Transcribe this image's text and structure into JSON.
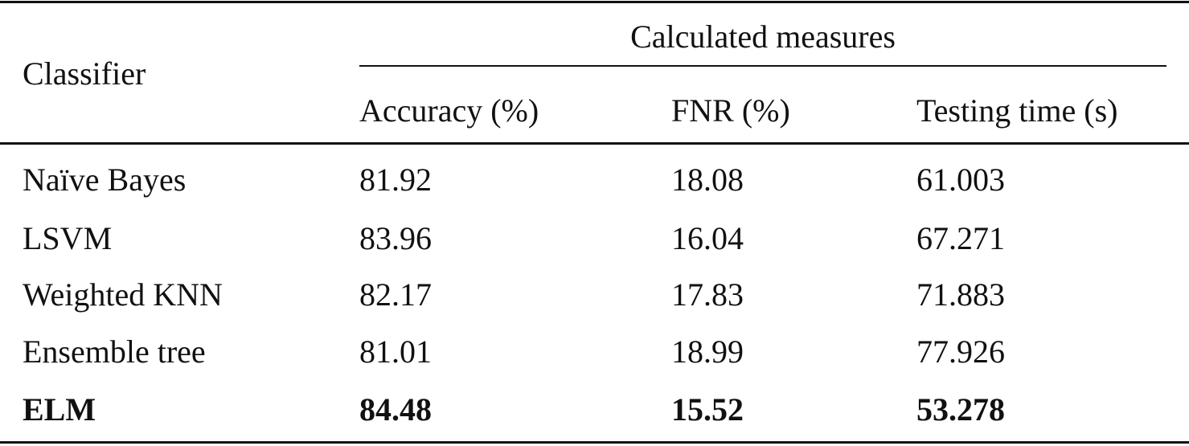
{
  "table": {
    "header": {
      "stub": "Classifier",
      "group": "Calculated measures",
      "columns": [
        "Accuracy (%)",
        "FNR (%)",
        "Testing time (s)"
      ]
    },
    "rows": [
      [
        "Naïve Bayes",
        "81.92",
        "18.08",
        "61.003"
      ],
      [
        "LSVM",
        "83.96",
        "16.04",
        "67.271"
      ],
      [
        "Weighted KNN",
        "82.17",
        "17.83",
        "71.883"
      ],
      [
        "Ensemble tree",
        "81.01",
        "18.99",
        "77.926"
      ],
      [
        "ELM",
        "84.48",
        "15.52",
        "53.278"
      ]
    ]
  }
}
